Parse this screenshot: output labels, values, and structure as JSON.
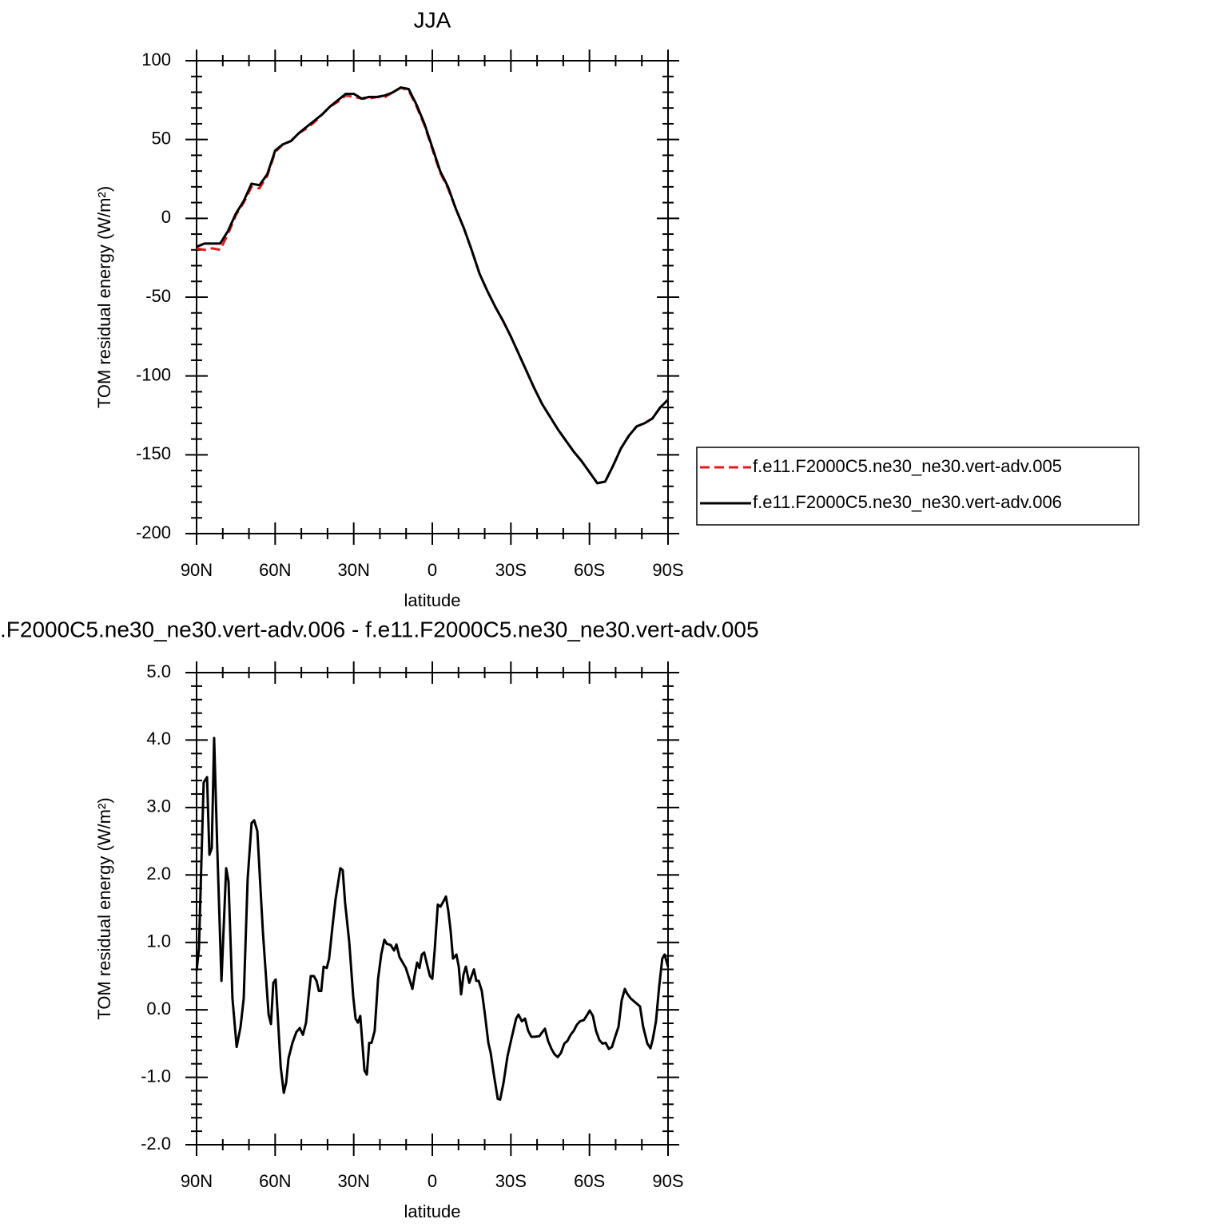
{
  "chart_data": [
    {
      "type": "line",
      "title": "JJA",
      "xlabel": "latitude",
      "ylabel": "TOM residual energy (W/m²)",
      "x": [
        90,
        87,
        84,
        81,
        78,
        75,
        72,
        69,
        66,
        63,
        60,
        57,
        54,
        51,
        48,
        45,
        42,
        39,
        36,
        33,
        30,
        27,
        24,
        21,
        18,
        15,
        12,
        9,
        6,
        3,
        0,
        -3,
        -6,
        -9,
        -12,
        -15,
        -18,
        -21,
        -24,
        -27,
        -30,
        -33,
        -36,
        -39,
        -42,
        -45,
        -48,
        -51,
        -54,
        -57,
        -60,
        -63,
        -66,
        -69,
        -72,
        -75,
        -78,
        -81,
        -84,
        -87,
        -90
      ],
      "series": [
        {
          "name": "f.e11.F2000C5.ne30_ne30.vert-adv.005",
          "color": "#e41a1c",
          "line_style": "dashed",
          "values": [
            -19,
            -20,
            -19,
            -20,
            -10,
            2,
            10,
            20,
            19,
            27,
            42,
            47,
            49,
            54,
            57,
            61,
            66,
            71,
            74,
            78,
            77,
            76,
            76,
            77,
            77,
            80,
            83,
            81,
            71,
            59,
            44,
            29,
            19,
            6,
            -6,
            -20,
            -35,
            -46,
            -56,
            -65,
            -75,
            -86,
            -97,
            -108,
            -118,
            -126,
            -134,
            -141,
            -148,
            -154,
            -161,
            -168,
            -167,
            -157,
            -146,
            -138,
            -132,
            -130,
            -127,
            -120,
            -115
          ]
        },
        {
          "name": "f.e11.F2000C5.ne30_ne30.vert-adv.006",
          "color": "#000000",
          "line_style": "solid",
          "values": [
            -18,
            -16,
            -16,
            -16,
            -8,
            3,
            11,
            22,
            21,
            28,
            43,
            47,
            49,
            54,
            58,
            62,
            66,
            71,
            75,
            79,
            79,
            76,
            77,
            77,
            78,
            80,
            83,
            82,
            72,
            60,
            45,
            30,
            20,
            6,
            -6,
            -20,
            -35,
            -46,
            -56,
            -65,
            -75,
            -86,
            -97,
            -108,
            -118,
            -126,
            -134,
            -141,
            -148,
            -154,
            -161,
            -168,
            -167,
            -157,
            -146,
            -138,
            -132,
            -130,
            -127,
            -120,
            -115
          ]
        }
      ],
      "xlim": [
        90,
        -90
      ],
      "xticks": [
        {
          "value": 90,
          "label": "90N"
        },
        {
          "value": 60,
          "label": "60N"
        },
        {
          "value": 30,
          "label": "30N"
        },
        0,
        {
          "value": -30,
          "label": "30S"
        },
        {
          "value": -60,
          "label": "60S"
        },
        {
          "value": -90,
          "label": "90S"
        }
      ],
      "xminorticks": [
        80,
        70,
        50,
        40,
        20,
        10,
        -10,
        -20,
        -40,
        -50,
        -70,
        -80
      ],
      "ylim": [
        -200,
        100
      ],
      "yticks": [
        -200,
        -150,
        -100,
        -50,
        0,
        50,
        100
      ],
      "yminorticks": [
        -190,
        -180,
        -170,
        -160,
        -140,
        -130,
        -120,
        -110,
        -90,
        -80,
        -70,
        -60,
        -40,
        -30,
        -20,
        -10,
        10,
        20,
        30,
        40,
        60,
        70,
        80,
        90
      ],
      "legend": "right"
    },
    {
      "type": "line",
      "title": ".F2000C5.ne30_ne30.vert-adv.006 - f.e11.F2000C5.ne30_ne30.vert-adv.005",
      "xlabel": "latitude",
      "ylabel": "TOM residual energy (W/m²)",
      "x": [
        90.0,
        89.1,
        87.3,
        86.0,
        85.1,
        84.2,
        83.3,
        82.1,
        80.5,
        78.7,
        77.8,
        76.3,
        74.7,
        73.2,
        72.0,
        70.5,
        69.0,
        68.0,
        66.8,
        64.7,
        62.5,
        61.6,
        60.7,
        59.8,
        57.9,
        56.7,
        55.8,
        54.9,
        53.4,
        51.9,
        50.6,
        49.4,
        48.2,
        47.3,
        46.4,
        45.2,
        44.2,
        43.3,
        42.4,
        41.5,
        40.3,
        39.4,
        38.1,
        36.9,
        35.1,
        34.2,
        33.3,
        31.7,
        30.2,
        29.3,
        28.4,
        27.5,
        25.9,
        25.0,
        24.1,
        23.2,
        22.0,
        20.7,
        19.5,
        18.3,
        17.4,
        15.9,
        14.6,
        13.7,
        12.5,
        11.3,
        10.1,
        8.8,
        7.6,
        6.7,
        5.8,
        4.9,
        4.0,
        3.1,
        1.8,
        0.9,
        0.0,
        -0.9,
        -2.1,
        -3.1,
        -4.0,
        -5.2,
        -6.1,
        -7.0,
        -7.9,
        -9.2,
        -10.1,
        -11.0,
        -11.9,
        -12.8,
        -14.1,
        -15.9,
        -16.8,
        -17.7,
        -18.9,
        -20.1,
        -21.4,
        -22.3,
        -23.5,
        -25.0,
        -25.9,
        -27.2,
        -28.7,
        -30.2,
        -32.0,
        -32.9,
        -34.2,
        -35.4,
        -36.6,
        -37.8,
        -39.0,
        -40.9,
        -41.8,
        -43.0,
        -44.2,
        -45.5,
        -46.7,
        -47.9,
        -49.1,
        -50.4,
        -51.6,
        -52.8,
        -54.0,
        -55.2,
        -56.4,
        -57.9,
        -59.2,
        -60.1,
        -61.3,
        -62.5,
        -63.8,
        -65.0,
        -66.2,
        -67.4,
        -68.6,
        -69.9,
        -71.1,
        -72.3,
        -73.5,
        -74.4,
        -75.7,
        -76.9,
        -78.1,
        -79.3,
        -80.5,
        -82.1,
        -83.3,
        -84.2,
        -85.4,
        -86.6,
        -87.8,
        -88.7,
        -90.0
      ],
      "series": [
        {
          "color": "#000000",
          "line_style": "solid",
          "values": [
            0.58,
            0.9,
            3.37,
            3.45,
            2.3,
            2.4,
            4.03,
            2.4,
            0.43,
            2.1,
            1.9,
            0.17,
            -0.55,
            -0.25,
            0.17,
            1.94,
            2.77,
            2.81,
            2.65,
            1.17,
            -0.07,
            -0.21,
            0.4,
            0.45,
            -0.84,
            -1.23,
            -1.08,
            -0.72,
            -0.49,
            -0.33,
            -0.27,
            -0.37,
            -0.19,
            0.17,
            0.5,
            0.5,
            0.43,
            0.28,
            0.28,
            0.64,
            0.62,
            0.76,
            1.24,
            1.65,
            2.1,
            2.07,
            1.59,
            1.0,
            0.2,
            -0.13,
            -0.19,
            -0.09,
            -0.9,
            -0.96,
            -0.49,
            -0.49,
            -0.31,
            0.46,
            0.82,
            1.04,
            0.98,
            0.96,
            0.88,
            0.97,
            0.78,
            0.7,
            0.62,
            0.46,
            0.31,
            0.52,
            0.7,
            0.62,
            0.82,
            0.85,
            0.64,
            0.5,
            0.46,
            0.88,
            1.56,
            1.53,
            1.59,
            1.68,
            1.47,
            1.17,
            0.76,
            0.82,
            0.64,
            0.23,
            0.52,
            0.64,
            0.4,
            0.6,
            0.43,
            0.43,
            0.28,
            -0.07,
            -0.49,
            -0.64,
            -0.96,
            -1.32,
            -1.33,
            -1.08,
            -0.69,
            -0.43,
            -0.13,
            -0.07,
            -0.17,
            -0.13,
            -0.31,
            -0.4,
            -0.4,
            -0.39,
            -0.34,
            -0.28,
            -0.46,
            -0.58,
            -0.66,
            -0.7,
            -0.64,
            -0.5,
            -0.46,
            -0.37,
            -0.31,
            -0.22,
            -0.17,
            -0.15,
            -0.07,
            -0.01,
            -0.09,
            -0.31,
            -0.45,
            -0.5,
            -0.49,
            -0.58,
            -0.55,
            -0.39,
            -0.25,
            0.14,
            0.31,
            0.24,
            0.17,
            0.13,
            0.09,
            0.05,
            -0.25,
            -0.5,
            -0.57,
            -0.43,
            -0.17,
            0.34,
            0.76,
            0.82,
            0.64
          ]
        }
      ],
      "xlim": [
        90,
        -90
      ],
      "xticks": [
        {
          "value": 90,
          "label": "90N"
        },
        {
          "value": 60,
          "label": "60N"
        },
        {
          "value": 30,
          "label": "30N"
        },
        0,
        {
          "value": -30,
          "label": "30S"
        },
        {
          "value": -60,
          "label": "60S"
        },
        {
          "value": -90,
          "label": "90S"
        }
      ],
      "xminorticks": [
        80,
        70,
        50,
        40,
        20,
        10,
        -10,
        -20,
        -40,
        -50,
        -70,
        -80
      ],
      "ylim": [
        -2,
        5
      ],
      "yticks": [
        {
          "value": -2,
          "label": "-2.0"
        },
        {
          "value": -1,
          "label": "-1.0"
        },
        {
          "value": 0,
          "label": "0.0"
        },
        {
          "value": 1,
          "label": "1.0"
        },
        {
          "value": 2,
          "label": "2.0"
        },
        {
          "value": 3,
          "label": "3.0"
        },
        {
          "value": 4,
          "label": "4.0"
        },
        {
          "value": 5,
          "label": "5.0"
        }
      ],
      "yminorticks": [
        -1.8,
        -1.6,
        -1.4,
        -1.2,
        -0.8,
        -0.6,
        -0.4,
        -0.2,
        0.2,
        0.4,
        0.6,
        0.8,
        1.2,
        1.4,
        1.6,
        1.8,
        2.2,
        2.4,
        2.6,
        2.8,
        3.2,
        3.4,
        3.6,
        3.8,
        4.2,
        4.4,
        4.6,
        4.8
      ]
    }
  ]
}
